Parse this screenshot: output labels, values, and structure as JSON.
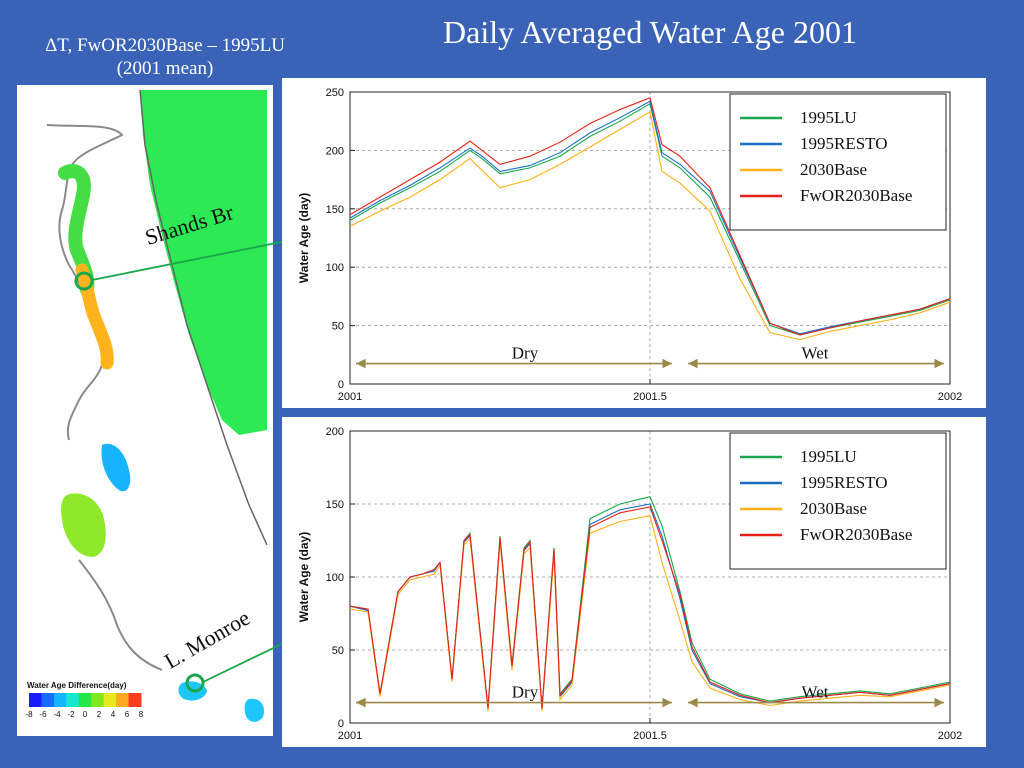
{
  "slide": {
    "title": "Daily Averaged Water Age 2001",
    "map_caption_line1": "ΔT, FwOR2030Base – 1995LU",
    "map_caption_line2": "(2001 mean)"
  },
  "map": {
    "callouts": [
      "Shands Br",
      "L. Monroe"
    ],
    "colorbar": {
      "title": "Water Age Difference(day)",
      "ticks": [
        "-8",
        "-6",
        "-4",
        "-2",
        "0",
        "2",
        "4",
        "6",
        "8"
      ],
      "colors": [
        "#1a1aff",
        "#1a6bff",
        "#12b7ff",
        "#18e8d0",
        "#22e84a",
        "#7fe81e",
        "#e8e81e",
        "#ffaa1e",
        "#ff3d1e"
      ]
    }
  },
  "colors": {
    "background": "#3a63b8",
    "arrow": "#1aa64a",
    "dry_wet_arrow": "#9c8a4a"
  },
  "chart_data": [
    {
      "type": "line",
      "title": "",
      "xlabel": "",
      "ylabel": "Water Age (day)",
      "xlim": [
        2001,
        2002
      ],
      "ylim": [
        0,
        250
      ],
      "x_ticks": [
        "2001",
        "2001.5",
        "2002"
      ],
      "y_ticks": [
        0,
        50,
        100,
        150,
        200,
        250
      ],
      "grid": true,
      "legend_position": "top-right",
      "annotations": [
        "Dry",
        "Wet"
      ],
      "dry_wet_split": 2001.55,
      "x": [
        2001.0,
        2001.05,
        2001.1,
        2001.15,
        2001.2,
        2001.22,
        2001.25,
        2001.3,
        2001.35,
        2001.4,
        2001.45,
        2001.5,
        2001.52,
        2001.55,
        2001.6,
        2001.65,
        2001.7,
        2001.75,
        2001.8,
        2001.85,
        2001.9,
        2001.95,
        2002.0
      ],
      "series": [
        {
          "name": "1995LU",
          "color": "#1aa64a",
          "values": [
            140,
            155,
            168,
            182,
            200,
            193,
            180,
            185,
            195,
            212,
            225,
            240,
            195,
            185,
            160,
            105,
            50,
            42,
            48,
            53,
            58,
            63,
            72
          ]
        },
        {
          "name": "1995RESTO",
          "color": "#1a6fc4",
          "values": [
            142,
            157,
            170,
            185,
            202,
            195,
            182,
            187,
            198,
            215,
            228,
            242,
            198,
            188,
            165,
            108,
            52,
            43,
            49,
            54,
            59,
            64,
            73
          ]
        },
        {
          "name": "2030Base",
          "color": "#ffb01a",
          "values": [
            135,
            148,
            160,
            175,
            193,
            183,
            168,
            175,
            188,
            203,
            218,
            233,
            182,
            172,
            148,
            90,
            44,
            38,
            45,
            50,
            55,
            61,
            70
          ]
        },
        {
          "name": "FwOR2030Base",
          "color": "#e8201a",
          "values": [
            145,
            160,
            175,
            190,
            208,
            200,
            188,
            195,
            207,
            223,
            235,
            245,
            205,
            195,
            168,
            110,
            52,
            42,
            48,
            54,
            59,
            64,
            73
          ]
        }
      ]
    },
    {
      "type": "line",
      "title": "",
      "xlabel": "",
      "ylabel": "Water Age (day)",
      "xlim": [
        2001,
        2002
      ],
      "ylim": [
        0,
        200
      ],
      "x_ticks": [
        "2001",
        "2001.5",
        "2002"
      ],
      "y_ticks": [
        0,
        50,
        100,
        150,
        200
      ],
      "grid": true,
      "legend_position": "top-right",
      "annotations": [
        "Dry",
        "Wet"
      ],
      "dry_wet_split": 2001.55,
      "x": [
        2001.0,
        2001.03,
        2001.05,
        2001.08,
        2001.1,
        2001.12,
        2001.14,
        2001.15,
        2001.17,
        2001.19,
        2001.2,
        2001.23,
        2001.25,
        2001.27,
        2001.29,
        2001.3,
        2001.32,
        2001.34,
        2001.35,
        2001.37,
        2001.4,
        2001.45,
        2001.5,
        2001.52,
        2001.55,
        2001.57,
        2001.6,
        2001.65,
        2001.7,
        2001.75,
        2001.8,
        2001.85,
        2001.9,
        2001.95,
        2002.0
      ],
      "series": [
        {
          "name": "1995LU",
          "color": "#1aa64a",
          "values": [
            80,
            78,
            20,
            90,
            100,
            102,
            105,
            110,
            30,
            125,
            130,
            10,
            128,
            40,
            120,
            125,
            10,
            120,
            20,
            30,
            140,
            150,
            155,
            135,
            90,
            55,
            30,
            20,
            15,
            18,
            20,
            22,
            20,
            24,
            28
          ]
        },
        {
          "name": "1995RESTO",
          "color": "#1a6fc4",
          "values": [
            80,
            77,
            20,
            90,
            100,
            102,
            104,
            110,
            30,
            124,
            128,
            10,
            126,
            38,
            118,
            123,
            10,
            118,
            18,
            28,
            136,
            146,
            150,
            128,
            85,
            50,
            27,
            18,
            14,
            17,
            19,
            21,
            19,
            23,
            27
          ]
        },
        {
          "name": "2030Base",
          "color": "#ffb01a",
          "values": [
            78,
            76,
            18,
            88,
            98,
            100,
            102,
            108,
            28,
            122,
            126,
            8,
            124,
            36,
            116,
            120,
            8,
            115,
            16,
            26,
            130,
            138,
            142,
            110,
            70,
            42,
            24,
            16,
            12,
            15,
            17,
            19,
            18,
            22,
            26
          ]
        },
        {
          "name": "FwOR2030Base",
          "color": "#e8201a",
          "values": [
            80,
            78,
            20,
            90,
            100,
            102,
            105,
            110,
            30,
            125,
            129,
            10,
            127,
            39,
            119,
            124,
            10,
            119,
            19,
            29,
            134,
            144,
            148,
            125,
            88,
            52,
            28,
            19,
            14,
            17,
            19,
            21,
            19,
            23,
            27
          ]
        }
      ]
    }
  ]
}
